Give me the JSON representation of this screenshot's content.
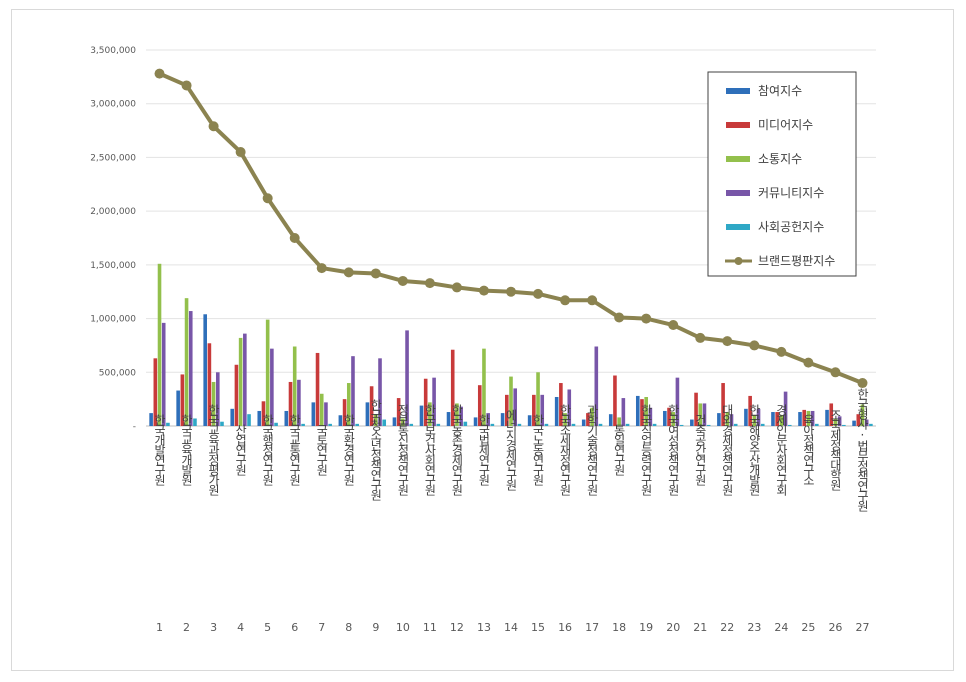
{
  "chart_data": {
    "type": "bar",
    "y_ticks": [
      "-",
      "500,000",
      "1,000,000",
      "1,500,000",
      "2,000,000",
      "2,500,000",
      "3,000,000",
      "3,500,000"
    ],
    "ylim": [
      0,
      3500000
    ],
    "grid": true,
    "legend_position": "top-right",
    "categories": [
      {
        "rank": "1",
        "name": "한국개발연구원"
      },
      {
        "rank": "2",
        "name": "한국교육개발원"
      },
      {
        "rank": "3",
        "name": "한국교육과정평가원"
      },
      {
        "rank": "4",
        "name": "산업연구원"
      },
      {
        "rank": "5",
        "name": "한국행정연구원"
      },
      {
        "rank": "6",
        "name": "한국교통연구원"
      },
      {
        "rank": "7",
        "name": "국토연구원"
      },
      {
        "rank": "8",
        "name": "한국환경연구원"
      },
      {
        "rank": "9",
        "name": "한국청소년정책연구원"
      },
      {
        "rank": "10",
        "name": "정보통신정책연구원"
      },
      {
        "rank": "11",
        "name": "한국보건사회연구원"
      },
      {
        "rank": "12",
        "name": "한국농촌경제연구원"
      },
      {
        "rank": "13",
        "name": "한국법제연구원"
      },
      {
        "rank": "14",
        "name": "에너지경제연구원"
      },
      {
        "rank": "15",
        "name": "한국노동연구원"
      },
      {
        "rank": "16",
        "name": "한국조세재정연구원"
      },
      {
        "rank": "17",
        "name": "과학기술정책연구원"
      },
      {
        "rank": "18",
        "name": "통일연구원"
      },
      {
        "rank": "19",
        "name": "한국직업능력연구원"
      },
      {
        "rank": "20",
        "name": "한국여성정책연구원"
      },
      {
        "rank": "21",
        "name": "건축공간연구원"
      },
      {
        "rank": "22",
        "name": "대외경제정책연구원"
      },
      {
        "rank": "23",
        "name": "한국해양수산개발원"
      },
      {
        "rank": "24",
        "name": "경제인문사회연구회"
      },
      {
        "rank": "25",
        "name": "육아정책연구소"
      },
      {
        "rank": "26",
        "name": "조국제정책대학원"
      },
      {
        "rank": "27",
        "name": "한국형사·법무정책연구원"
      }
    ],
    "series": [
      {
        "name": "참여지수",
        "type": "bar",
        "color": "#2e6fba",
        "values": [
          120000,
          330000,
          1040000,
          160000,
          140000,
          140000,
          220000,
          100000,
          220000,
          80000,
          190000,
          130000,
          80000,
          120000,
          100000,
          270000,
          60000,
          110000,
          280000,
          140000,
          60000,
          120000,
          160000,
          130000,
          130000,
          150000,
          50000
        ]
      },
      {
        "name": "미디어지수",
        "type": "bar",
        "color": "#c83a3a",
        "values": [
          630000,
          480000,
          770000,
          570000,
          230000,
          410000,
          680000,
          250000,
          370000,
          260000,
          440000,
          710000,
          380000,
          290000,
          290000,
          400000,
          120000,
          470000,
          250000,
          170000,
          310000,
          400000,
          280000,
          130000,
          150000,
          210000,
          110000
        ]
      },
      {
        "name": "소통지수",
        "type": "bar",
        "color": "#93c04c",
        "values": [
          1510000,
          1190000,
          410000,
          820000,
          990000,
          740000,
          300000,
          400000,
          110000,
          70000,
          220000,
          210000,
          720000,
          460000,
          500000,
          120000,
          170000,
          80000,
          270000,
          130000,
          210000,
          130000,
          100000,
          100000,
          140000,
          70000,
          200000
        ]
      },
      {
        "name": "커뮤니티지수",
        "type": "bar",
        "color": "#7856a8",
        "values": [
          960000,
          1070000,
          500000,
          860000,
          720000,
          430000,
          220000,
          650000,
          630000,
          890000,
          450000,
          180000,
          120000,
          350000,
          290000,
          340000,
          740000,
          260000,
          170000,
          450000,
          210000,
          110000,
          160000,
          320000,
          140000,
          90000,
          60000
        ]
      },
      {
        "name": "사회공헌지수",
        "type": "bar",
        "color": "#2fa8c6",
        "values": [
          30000,
          70000,
          40000,
          110000,
          30000,
          20000,
          20000,
          20000,
          60000,
          20000,
          20000,
          40000,
          20000,
          20000,
          20000,
          20000,
          20000,
          20000,
          20000,
          10000,
          10000,
          20000,
          20000,
          10000,
          20000,
          10000,
          20000
        ]
      },
      {
        "name": "브랜드평판지수",
        "type": "line",
        "color": "#8b8350",
        "values": [
          3280000,
          3170000,
          2790000,
          2550000,
          2120000,
          1750000,
          1470000,
          1430000,
          1420000,
          1350000,
          1330000,
          1290000,
          1260000,
          1250000,
          1230000,
          1170000,
          1170000,
          1010000,
          1000000,
          940000,
          820000,
          790000,
          750000,
          690000,
          590000,
          500000,
          400000
        ]
      }
    ]
  }
}
